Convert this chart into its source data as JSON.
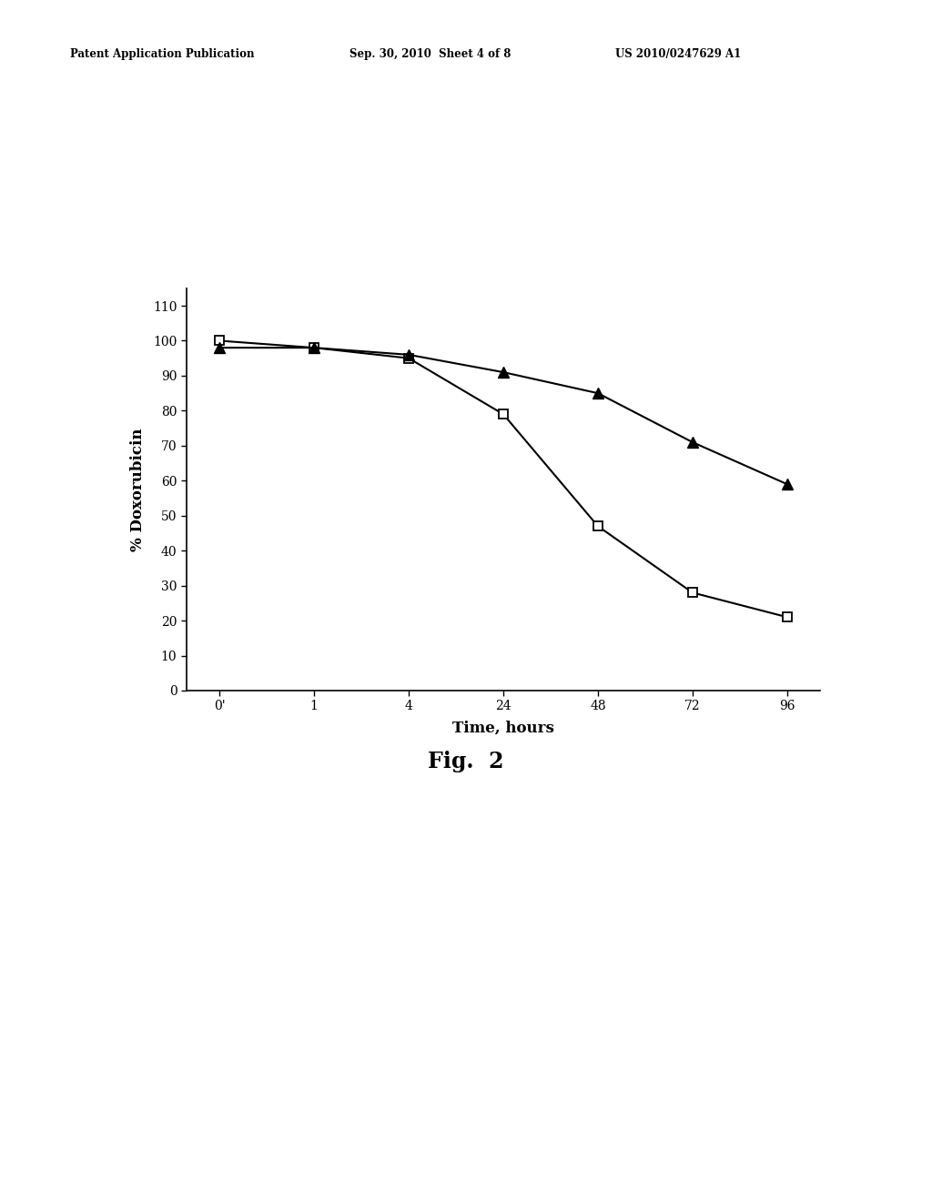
{
  "header_left": "Patent Application Publication",
  "header_mid": "Sep. 30, 2010  Sheet 4 of 8",
  "header_right": "US 2010/0247629 A1",
  "fig_label": "Fig.  2",
  "xlabel": "Time, hours",
  "ylabel": "% Doxorubicin",
  "x_ticks": [
    "0'",
    "1",
    "4",
    "24",
    "48",
    "72",
    "96"
  ],
  "x_values": [
    0,
    1,
    2,
    3,
    4,
    5,
    6
  ],
  "ylim": [
    0,
    115
  ],
  "yticks": [
    0,
    10,
    20,
    30,
    40,
    50,
    60,
    70,
    80,
    90,
    100,
    110
  ],
  "series_square": {
    "y": [
      100,
      98,
      95,
      79,
      47,
      28,
      21
    ],
    "marker": "s",
    "color": "#000000",
    "markersize": 7,
    "linewidth": 1.5
  },
  "series_triangle": {
    "y": [
      98,
      98,
      96,
      91,
      85,
      71,
      59
    ],
    "marker": "^",
    "color": "#000000",
    "markersize": 8,
    "linewidth": 1.5
  },
  "background_color": "#ffffff",
  "axis_fontsize": 12,
  "tick_fontsize": 10,
  "fig_label_fontsize": 17,
  "header_fontsize": 8.5
}
